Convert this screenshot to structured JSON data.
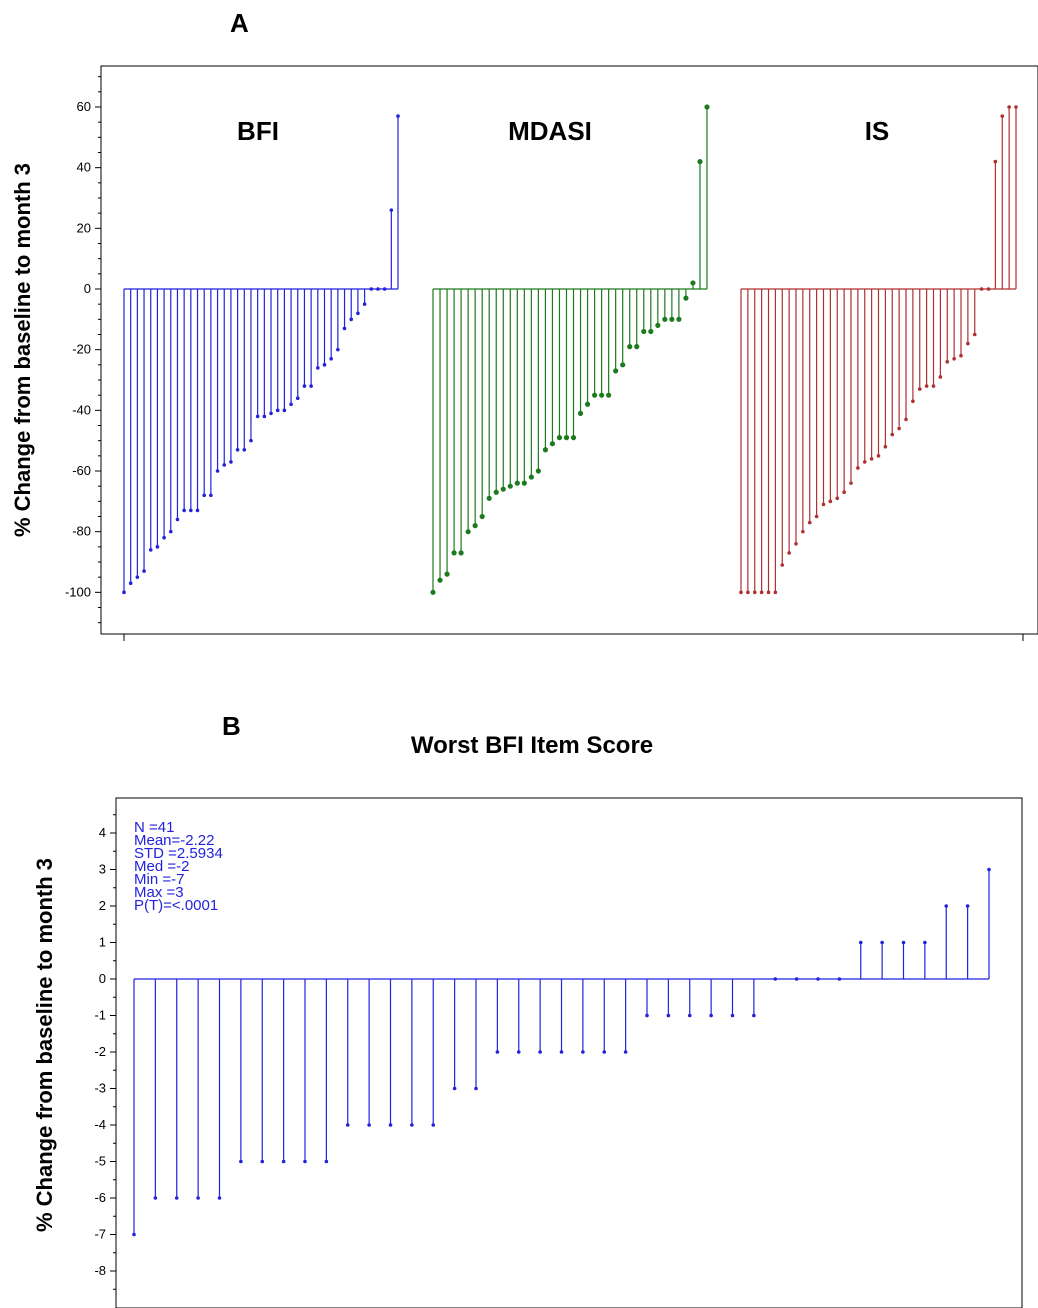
{
  "chart_data": [
    {
      "panel": "A",
      "type": "waterfall",
      "title": "",
      "ylabel": "% Change from baseline to month 3",
      "ylim": [
        -113,
        75
      ],
      "yticks": [
        60,
        40,
        20,
        0,
        -20,
        -40,
        -60,
        -80,
        -100
      ],
      "grid": false,
      "series": [
        {
          "name": "BFI",
          "color": "#2222dd",
          "values": [
            -100,
            -97,
            -95,
            -93,
            -86,
            -85,
            -82,
            -80,
            -76,
            -73,
            -73,
            -73,
            -68,
            -68,
            -60,
            -58,
            -57,
            -53,
            -53,
            -50,
            -42,
            -42,
            -41,
            -40,
            -40,
            -38,
            -36,
            -32,
            -32,
            -26,
            -25,
            -23,
            -20,
            -13,
            -10,
            -8,
            -5,
            0,
            0,
            0,
            26,
            57
          ]
        },
        {
          "name": "MDASI",
          "color": "#1e7a1e",
          "values": [
            -100,
            -96,
            -94,
            -87,
            -87,
            -80,
            -78,
            -75,
            -69,
            -67,
            -66,
            -65,
            -64,
            -64,
            -62,
            -60,
            -53,
            -51,
            -49,
            -49,
            -49,
            -41,
            -38,
            -35,
            -35,
            -35,
            -27,
            -25,
            -19,
            -19,
            -14,
            -14,
            -12,
            -10,
            -10,
            -10,
            -3,
            2,
            42,
            60
          ]
        },
        {
          "name": "IS",
          "color": "#b03030",
          "values": [
            -100,
            -100,
            -100,
            -100,
            -100,
            -100,
            -91,
            -87,
            -84,
            -80,
            -77,
            -75,
            -71,
            -70,
            -69,
            -67,
            -64,
            -59,
            -57,
            -56,
            -55,
            -52,
            -48,
            -46,
            -43,
            -37,
            -33,
            -32,
            -32,
            -29,
            -24,
            -23,
            -22,
            -18,
            -15,
            0,
            0,
            42,
            57,
            60,
            60
          ]
        }
      ]
    },
    {
      "panel": "B",
      "type": "waterfall",
      "title": "Worst BFI Item Score",
      "ylabel": "% Change from baseline to month 3",
      "ylim": [
        -8.9,
        5.1
      ],
      "yticks": [
        4,
        3,
        2,
        1,
        0,
        -1,
        -2,
        -3,
        -4,
        -5,
        -6,
        -7,
        -8
      ],
      "grid": false,
      "color": "#2222dd",
      "values": [
        -7,
        -6,
        -6,
        -6,
        -6,
        -5,
        -5,
        -5,
        -5,
        -5,
        -4,
        -4,
        -4,
        -4,
        -4,
        -3,
        -3,
        -2,
        -2,
        -2,
        -2,
        -2,
        -2,
        -2,
        -1,
        -1,
        -1,
        -1,
        -1,
        -1,
        0,
        0,
        0,
        0,
        1,
        1,
        1,
        1,
        2,
        2,
        3
      ],
      "stats": [
        "N    =41",
        "Mean=-2.22",
        "STD =2.5934",
        "Med =-2",
        "Min =-7",
        "Max =3",
        "P(T)=<.0001"
      ]
    }
  ]
}
